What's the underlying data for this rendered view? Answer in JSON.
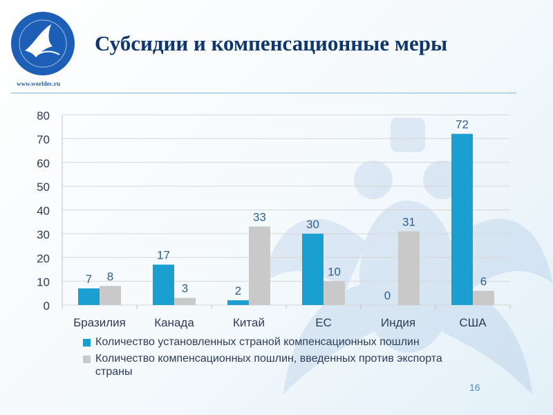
{
  "slide": {
    "title": "Субсидии и компенсационные меры",
    "site_url": "www.worldec.ru",
    "page_number": "16"
  },
  "colors": {
    "title": "#10366e",
    "series1": "#1a9fd0",
    "series2": "#c9c9c9",
    "grid": "#d6d6d6",
    "text": "#2e3b57",
    "logo_bg": "#1d5fb6"
  },
  "icons": {
    "logo": "university-bird-logo-icon",
    "emblem": "double-headed-eagle-watermark-icon"
  },
  "chart_data": {
    "type": "bar",
    "title": "",
    "xlabel": "",
    "ylabel": "",
    "categories": [
      "Бразилия",
      "Канада",
      "Китай",
      "ЕС",
      "Индия",
      "США"
    ],
    "ylim": [
      0,
      80
    ],
    "yticks": [
      0,
      10,
      20,
      30,
      40,
      50,
      60,
      70,
      80
    ],
    "grid": true,
    "legend_position": "bottom",
    "series": [
      {
        "name": "Количество установленных страной компенсационных пошлин",
        "color": "#1a9fd0",
        "values": [
          7,
          17,
          2,
          30,
          0,
          72
        ]
      },
      {
        "name": "Количество компенсационных пошлин, введенных против экспорта страны",
        "color": "#c9c9c9",
        "values": [
          8,
          3,
          33,
          10,
          31,
          6
        ]
      }
    ]
  }
}
